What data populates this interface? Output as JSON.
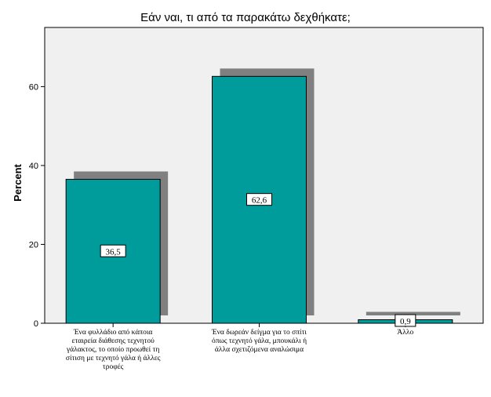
{
  "chart_data": {
    "type": "bar",
    "title": "Εάν ναι, τι από τα παρακάτω δεχθήκατε;",
    "xlabel": "",
    "ylabel": "Percent",
    "categories": [
      [
        "Ένα φυλλάδιο από κάποια",
        "εταιρεία διάθεσης τεχνητού",
        "γάλακτος, το οποίο προωθεί τη",
        "σίτιση με τεχνητό γάλα ή άλλες",
        "τροφές"
      ],
      [
        "Ένα δωρεάν δείγμα για το σπίτι",
        "όπως τεχνητό γάλα, μπουκάλι ή",
        "άλλα σχετιζόμενα αναλώσιμα"
      ],
      [
        "Άλλο"
      ]
    ],
    "values": [
      36.5,
      62.6,
      0.9
    ],
    "data_labels": [
      "36,5",
      "62,6",
      "0,9"
    ],
    "ylim": [
      0,
      75
    ],
    "yticks": [
      0,
      20,
      40,
      60
    ],
    "ytick_labels": [
      "0",
      "20",
      "40",
      "60"
    ],
    "grid": false,
    "legend": "none",
    "bar_color": "#009c9c",
    "shadow_color": "#808080",
    "plot_background": "#f0f0f0"
  }
}
